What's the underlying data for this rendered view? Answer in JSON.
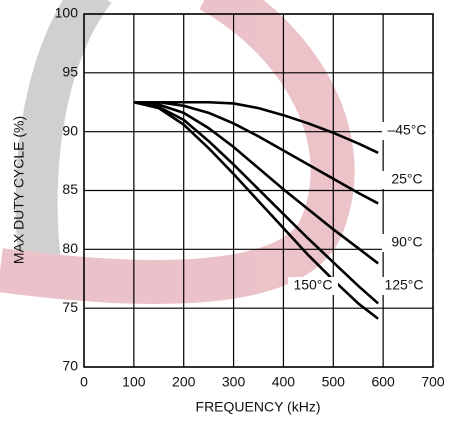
{
  "chart_data": {
    "type": "line",
    "xlabel": "FREQUENCY (kHz)",
    "ylabel": "MAX DUTY CYCLE (%)",
    "x": [
      100,
      150,
      200,
      250,
      300,
      350,
      400,
      450,
      500,
      550,
      590
    ],
    "series": [
      {
        "name": "–45°C",
        "color": "#000000",
        "values": [
          92.5,
          92.5,
          92.5,
          92.5,
          92.4,
          92.0,
          91.4,
          90.7,
          89.9,
          89.0,
          88.2
        ]
      },
      {
        "name": "25°C",
        "color": "#000000",
        "values": [
          92.5,
          92.5,
          92.2,
          91.6,
          90.7,
          89.6,
          88.4,
          87.2,
          86.0,
          84.8,
          83.9
        ]
      },
      {
        "name": "90°C",
        "color": "#000000",
        "values": [
          92.5,
          92.3,
          91.6,
          90.3,
          88.7,
          86.9,
          85.1,
          83.4,
          81.7,
          80.1,
          78.8
        ]
      },
      {
        "name": "125°C",
        "color": "#000000",
        "values": [
          92.5,
          92.1,
          91.0,
          89.2,
          87.2,
          85.1,
          83.0,
          80.9,
          78.9,
          76.9,
          75.4
        ]
      },
      {
        "name": "150°C",
        "color": "#000000",
        "values": [
          92.5,
          92.0,
          90.6,
          88.6,
          86.4,
          84.1,
          81.8,
          79.5,
          77.4,
          75.4,
          74.1
        ]
      }
    ],
    "xlim": [
      0,
      700
    ],
    "xticks": [
      0,
      100,
      200,
      300,
      400,
      500,
      600,
      700
    ],
    "ylim": [
      70,
      100
    ],
    "yticks": [
      70,
      75,
      80,
      85,
      90,
      95,
      100
    ],
    "grid": true
  }
}
